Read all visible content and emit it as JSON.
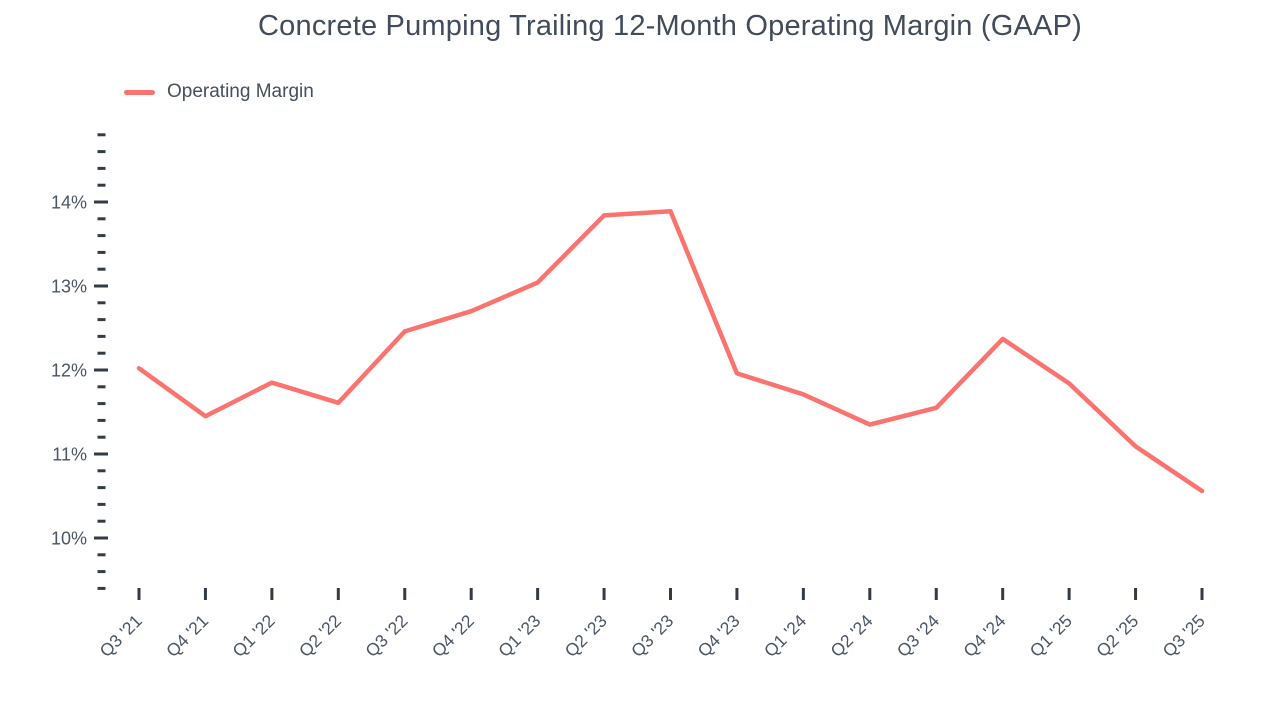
{
  "header": {
    "title": "Concrete Pumping Trailing 12-Month Operating Margin (GAAP)"
  },
  "legend": {
    "items": [
      {
        "label": "Operating Margin",
        "color": "#FA736E"
      }
    ]
  },
  "chart_data": {
    "type": "line",
    "title": "Concrete Pumping Trailing 12-Month Operating Margin (GAAP)",
    "categories": [
      "Q3 '21",
      "Q4 '21",
      "Q1 '22",
      "Q2 '22",
      "Q3 '22",
      "Q4 '22",
      "Q1 '23",
      "Q2 '23",
      "Q3 '23",
      "Q4 '23",
      "Q1 '24",
      "Q2 '24",
      "Q3 '24",
      "Q4 '24",
      "Q1 '25",
      "Q2 '25",
      "Q3 '25"
    ],
    "series": [
      {
        "name": "Operating Margin",
        "color": "#FA736E",
        "values": [
          12.02,
          11.45,
          11.85,
          11.61,
          12.46,
          12.7,
          13.04,
          13.84,
          13.89,
          11.96,
          11.71,
          11.35,
          11.55,
          12.37,
          11.84,
          11.09,
          10.56
        ]
      }
    ],
    "y_axis": {
      "min": 9.4,
      "max": 14.8,
      "major_step": 1,
      "minor_step": 0.2,
      "major_tick_labels": [
        "10%",
        "11%",
        "12%",
        "13%",
        "14%"
      ],
      "tick_suffix": "%"
    },
    "x_axis": {
      "label_rotation_deg": -45
    },
    "grid": false,
    "legend_position": "top-left",
    "colors": {
      "line": "#FA736E",
      "axis_tick": "#333B47",
      "axis_label": "#4A5565"
    }
  }
}
